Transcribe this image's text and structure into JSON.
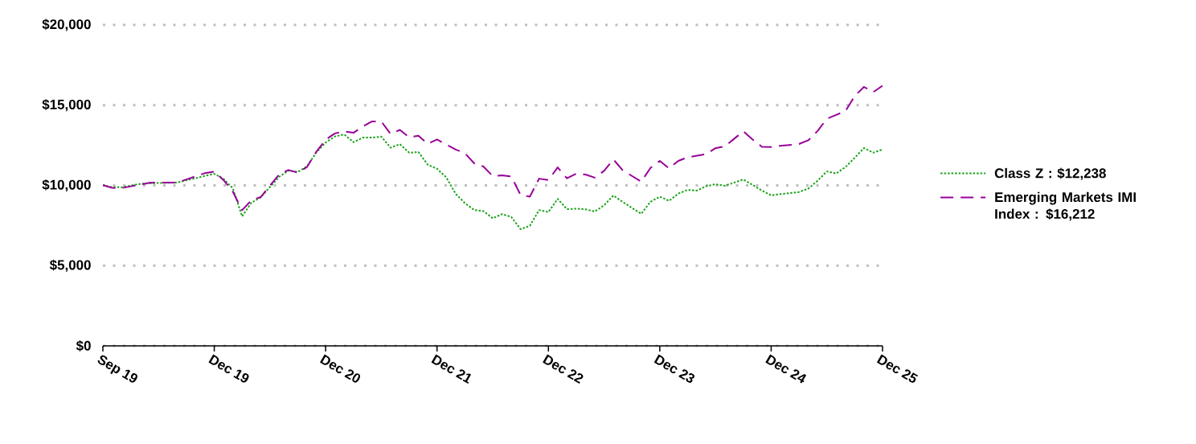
{
  "chart_data": {
    "type": "line",
    "categories": [
      "Sep 19",
      null,
      null,
      null,
      null,
      null,
      null,
      null,
      null,
      null,
      null,
      null,
      "Dec 19",
      null,
      null,
      null,
      null,
      null,
      null,
      null,
      null,
      null,
      null,
      null,
      "Dec 20",
      null,
      null,
      null,
      null,
      null,
      null,
      null,
      null,
      null,
      null,
      null,
      "Dec 21",
      null,
      null,
      null,
      null,
      null,
      null,
      null,
      null,
      null,
      null,
      null,
      "Dec 22",
      null,
      null,
      null,
      null,
      null,
      null,
      null,
      null,
      null,
      null,
      null,
      "Dec 23",
      null,
      null,
      null,
      null,
      null,
      null,
      null,
      null,
      null,
      null,
      null,
      "Dec 24",
      null,
      null,
      null,
      null,
      null,
      null,
      null,
      null,
      null,
      null,
      null,
      "Dec 25"
    ],
    "ylim": [
      0,
      20000
    ],
    "yticks": [
      {
        "value": 0,
        "label": "$0"
      },
      {
        "value": 5000,
        "label": "$5,000"
      },
      {
        "value": 10000,
        "label": "$10,000"
      },
      {
        "value": 15000,
        "label": "$15,000"
      },
      {
        "value": 20000,
        "label": "$20,000"
      }
    ],
    "grid": "y",
    "legend": "right",
    "series": [
      {
        "name": "Class Z : $12,238",
        "color": "#1aa31a",
        "line_style": "dotted",
        "values": [
          10010,
          9890,
          9880,
          9990,
          10090,
          10130,
          10150,
          10160,
          10180,
          10320,
          10450,
          10590,
          10720,
          10410,
          9820,
          8070,
          8920,
          9250,
          9900,
          10540,
          10920,
          10840,
          11190,
          12060,
          12670,
          13050,
          13180,
          12690,
          12980,
          12980,
          13040,
          12350,
          12570,
          12040,
          12080,
          11290,
          11040,
          10500,
          9480,
          8900,
          8470,
          8400,
          7950,
          8210,
          8040,
          7270,
          7480,
          8460,
          8340,
          9160,
          8520,
          8550,
          8510,
          8370,
          8760,
          9370,
          8970,
          8600,
          8230,
          8980,
          9300,
          9040,
          9490,
          9720,
          9680,
          9950,
          10070,
          9980,
          10170,
          10370,
          10030,
          9680,
          9380,
          9460,
          9520,
          9590,
          9800,
          10290,
          10870,
          10740,
          11140,
          11720,
          12330,
          12040,
          12240
        ]
      },
      {
        "name": "Emerging Markets IMI Index : $16,212",
        "color": "#990099",
        "line_style": "dashed",
        "values": [
          10010,
          9850,
          9830,
          9940,
          10050,
          10160,
          10180,
          10180,
          10180,
          10370,
          10570,
          10760,
          10860,
          10330,
          9610,
          8450,
          9080,
          9270,
          9980,
          10690,
          10960,
          10790,
          11150,
          12100,
          12850,
          13240,
          13360,
          13280,
          13670,
          13990,
          13980,
          13210,
          13460,
          13000,
          13100,
          12590,
          12860,
          12550,
          12240,
          12010,
          11380,
          11180,
          10580,
          10630,
          10560,
          9410,
          9300,
          10420,
          10340,
          11120,
          10440,
          10730,
          10680,
          10480,
          10910,
          11620,
          10950,
          10590,
          10230,
          11090,
          11530,
          11060,
          11530,
          11750,
          11850,
          11950,
          12320,
          12430,
          12900,
          13370,
          12860,
          12410,
          12390,
          12470,
          12520,
          12580,
          12810,
          13390,
          14150,
          14390,
          14630,
          15560,
          16140,
          15810,
          16210
        ]
      }
    ]
  }
}
